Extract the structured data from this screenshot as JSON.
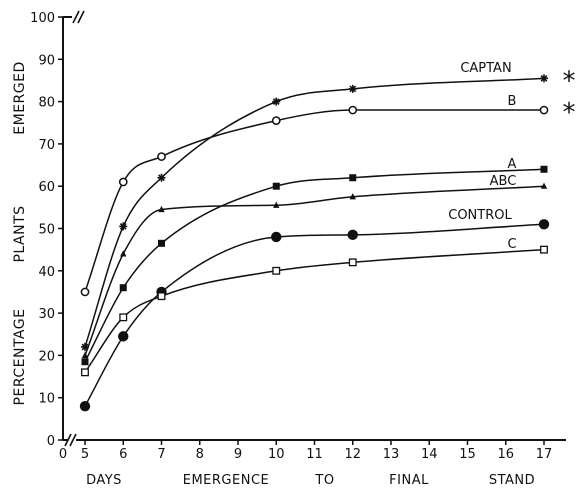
{
  "chart_data": {
    "type": "line",
    "xlabel": [
      "DAYS",
      "EMERGENCE",
      "TO",
      "FINAL",
      "STAND"
    ],
    "ylabel": [
      "PERCENTAGE",
      "PLANTS",
      "EMERGED"
    ],
    "xlim": [
      5,
      17
    ],
    "ylim": [
      0,
      100
    ],
    "x_ticks": [
      0,
      5,
      6,
      7,
      8,
      9,
      10,
      11,
      12,
      13,
      14,
      15,
      16,
      17
    ],
    "y_ticks": [
      0,
      10,
      20,
      30,
      40,
      50,
      60,
      70,
      80,
      90,
      100
    ],
    "axis_break": true,
    "grid": false,
    "legend": "labels at line ends",
    "significance_mark": "*",
    "series": [
      {
        "name": "CAPTAN",
        "marker": "asterisk",
        "significant": true,
        "x": [
          5,
          6,
          7,
          10,
          12,
          17
        ],
        "y": [
          22,
          50.5,
          62,
          80,
          83,
          85.5
        ]
      },
      {
        "name": "B",
        "marker": "open-circle",
        "significant": true,
        "x": [
          5,
          6,
          7,
          10,
          12,
          17
        ],
        "y": [
          35,
          61,
          67,
          75.5,
          78,
          78
        ]
      },
      {
        "name": "A",
        "marker": "filled-square",
        "significant": false,
        "x": [
          5,
          6,
          7,
          10,
          12,
          17
        ],
        "y": [
          18.5,
          36,
          46.5,
          60,
          62,
          64
        ]
      },
      {
        "name": "ABC",
        "marker": "filled-triangle",
        "significant": false,
        "x": [
          5,
          6,
          7,
          10,
          12,
          17
        ],
        "y": [
          20,
          44,
          54.5,
          55.5,
          57.5,
          60
        ]
      },
      {
        "name": "CONTROL",
        "marker": "filled-circle",
        "significant": false,
        "x": [
          5,
          6,
          7,
          10,
          12,
          17
        ],
        "y": [
          8,
          24.5,
          35,
          48,
          48.5,
          51
        ]
      },
      {
        "name": "C",
        "marker": "open-square",
        "significant": false,
        "x": [
          5,
          6,
          7,
          10,
          12,
          17
        ],
        "y": [
          16,
          29,
          34,
          40,
          42,
          45
        ]
      }
    ]
  }
}
